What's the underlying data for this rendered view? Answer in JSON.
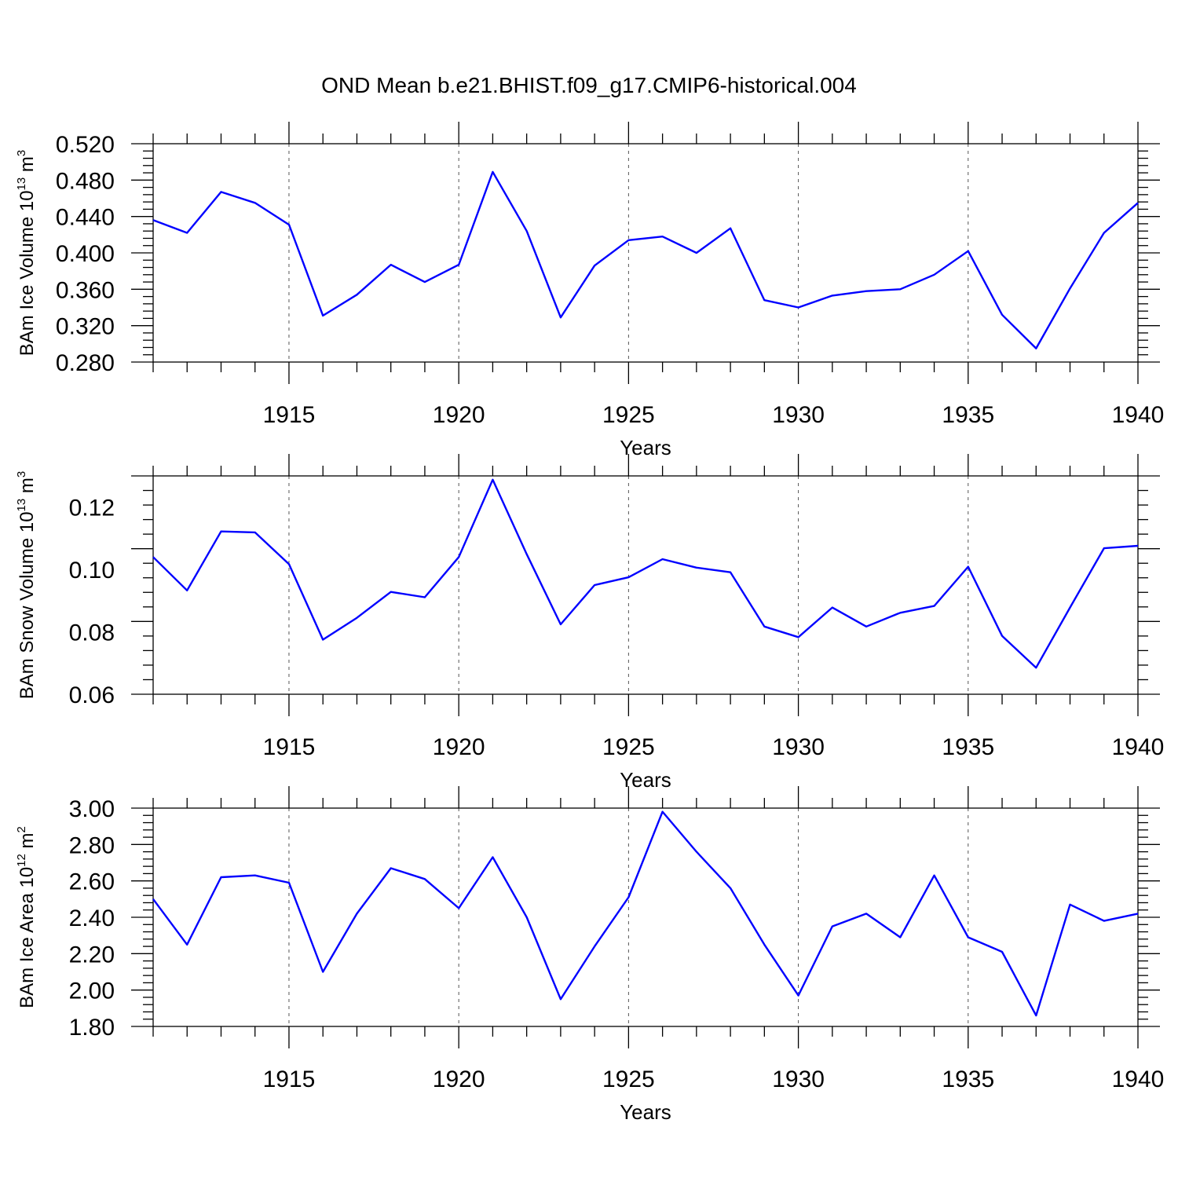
{
  "chart_data": {
    "title": "OND Mean b.e21.BHIST.f09_g17.CMIP6-historical.004",
    "panels": [
      {
        "type": "line",
        "name": "ice-volume",
        "ylabel": {
          "base": "BAm Ice Volume 10",
          "exp": "13",
          "unit": " m",
          "unit_exp": "3"
        },
        "xlabel": "Years",
        "xlim": [
          1911,
          1940
        ],
        "ylim": [
          0.28,
          0.52
        ],
        "yticks": [
          "0.520",
          "0.480",
          "0.440",
          "0.400",
          "0.360",
          "0.320",
          "0.280"
        ],
        "xticks": [
          "1915",
          "1920",
          "1925",
          "1930",
          "1935",
          "1940"
        ],
        "x": [
          1911,
          1912,
          1913,
          1914,
          1915,
          1916,
          1917,
          1918,
          1919,
          1920,
          1921,
          1922,
          1923,
          1924,
          1925,
          1926,
          1927,
          1928,
          1929,
          1930,
          1931,
          1932,
          1933,
          1934,
          1935,
          1936,
          1937,
          1938,
          1939,
          1940
        ],
        "values": [
          0.436,
          0.422,
          0.467,
          0.455,
          0.431,
          0.331,
          0.354,
          0.387,
          0.368,
          0.387,
          0.489,
          0.424,
          0.329,
          0.386,
          0.414,
          0.418,
          0.4,
          0.427,
          0.348,
          0.34,
          0.353,
          0.358,
          0.36,
          0.376,
          0.402,
          0.332,
          0.295,
          0.361,
          0.422,
          0.455
        ],
        "color": "#0000ff"
      },
      {
        "type": "line",
        "name": "snow-volume",
        "ylabel": {
          "base": "BAm Snow Volume 10",
          "exp": "13",
          "unit": " m",
          "unit_exp": "3"
        },
        "xlabel": "Years",
        "xlim": [
          1911,
          1940
        ],
        "ylim": [
          0.06,
          0.13
        ],
        "yticks": [
          "0.12",
          "0.10",
          "0.08",
          "0.06"
        ],
        "xticks": [
          "1915",
          "1920",
          "1925",
          "1930",
          "1935",
          "1940"
        ],
        "x": [
          1911,
          1912,
          1913,
          1914,
          1915,
          1916,
          1917,
          1918,
          1919,
          1920,
          1921,
          1922,
          1923,
          1924,
          1925,
          1926,
          1927,
          1928,
          1929,
          1930,
          1931,
          1932,
          1933,
          1934,
          1935,
          1936,
          1937,
          1938,
          1939,
          1940
        ],
        "values": [
          0.104,
          0.0933,
          0.1122,
          0.1119,
          0.1017,
          0.0775,
          0.0845,
          0.0928,
          0.0911,
          0.104,
          0.1288,
          0.1049,
          0.0824,
          0.095,
          0.0975,
          0.1033,
          0.1006,
          0.0991,
          0.0817,
          0.0783,
          0.0878,
          0.0817,
          0.0861,
          0.0883,
          0.1009,
          0.0787,
          0.0685,
          0.0878,
          0.1068,
          0.1076
        ],
        "color": "#0000ff"
      },
      {
        "type": "line",
        "name": "ice-area",
        "ylabel": {
          "base": "BAm Ice Area 10",
          "exp": "12",
          "unit": " m",
          "unit_exp": "2"
        },
        "xlabel": "Years",
        "xlim": [
          1911,
          1940
        ],
        "ylim": [
          1.8,
          3.0
        ],
        "yticks": [
          "3.00",
          "2.80",
          "2.60",
          "2.40",
          "2.20",
          "2.00",
          "1.80"
        ],
        "xticks": [
          "1915",
          "1920",
          "1925",
          "1930",
          "1935",
          "1940"
        ],
        "x": [
          1911,
          1912,
          1913,
          1914,
          1915,
          1916,
          1917,
          1918,
          1919,
          1920,
          1921,
          1922,
          1923,
          1924,
          1925,
          1926,
          1927,
          1928,
          1929,
          1930,
          1931,
          1932,
          1933,
          1934,
          1935,
          1936,
          1937,
          1938,
          1939,
          1940
        ],
        "values": [
          2.5,
          2.25,
          2.62,
          2.63,
          2.59,
          2.1,
          2.42,
          2.67,
          2.61,
          2.45,
          2.73,
          2.4,
          1.95,
          2.24,
          2.51,
          2.98,
          2.76,
          2.56,
          2.25,
          1.97,
          2.35,
          2.42,
          2.29,
          2.63,
          2.29,
          2.21,
          1.86,
          2.47,
          2.38,
          2.42
        ],
        "color": "#0000ff"
      }
    ]
  }
}
